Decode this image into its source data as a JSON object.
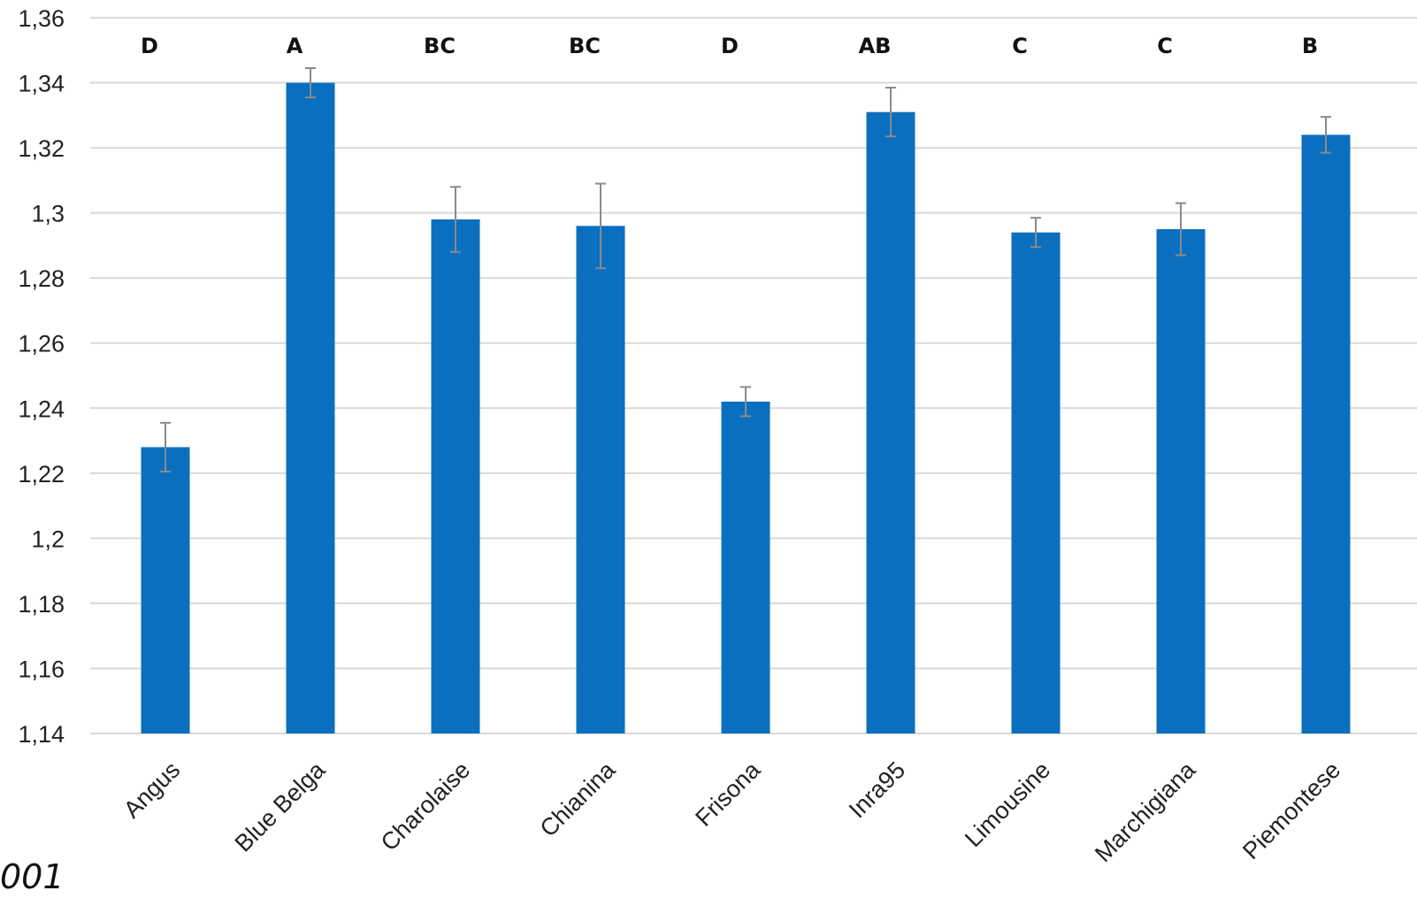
{
  "chart_data": {
    "type": "bar",
    "categories": [
      "Angus",
      "Blue Belga",
      "Charolaise",
      "Chianina",
      "Frisona",
      "Inra95",
      "Limousine",
      "Marchigiana",
      "Piemontese"
    ],
    "values": [
      1.228,
      1.34,
      1.298,
      1.296,
      1.242,
      1.331,
      1.294,
      1.295,
      1.324
    ],
    "error_bars": [
      0.0075,
      0.0045,
      0.01,
      0.013,
      0.0045,
      0.0075,
      0.0045,
      0.008,
      0.0055
    ],
    "group_letters": [
      "D",
      "A",
      "BC",
      "BC",
      "D",
      "AB",
      "C",
      "C",
      "B"
    ],
    "title": "",
    "xlabel": "",
    "ylabel": "",
    "ylim": [
      1.14,
      1.36
    ],
    "y_step": 0.02,
    "y_ticks": [
      "1,14",
      "1,16",
      "1,18",
      "1,2",
      "1,22",
      "1,24",
      "1,26",
      "1,28",
      "1,3",
      "1,32",
      "1,34",
      "1,36"
    ],
    "grid": true,
    "legend": "none",
    "colors": {
      "bar": "#0b6fbf",
      "error_bar": "#8a8a8a",
      "grid": "#d9d9d9"
    }
  },
  "footnote": "001"
}
